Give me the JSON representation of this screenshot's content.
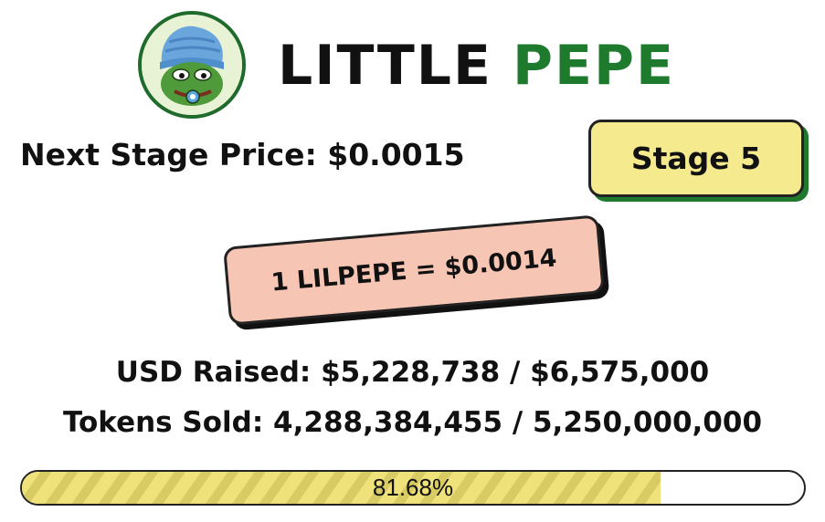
{
  "logo": {
    "icon": "pepe-avatar-icon"
  },
  "title": {
    "part1": "LITTLE",
    "part2": "PEPE"
  },
  "next_stage": {
    "label": "Next Stage Price: $0.0015"
  },
  "stage_badge": {
    "label": "Stage 5"
  },
  "price_card": {
    "label": "1 LILPEPE = $0.0014"
  },
  "stats": {
    "usd_raised": "USD Raised: $5,228,738 / $6,575,000",
    "tokens_sold": "Tokens Sold: 4,288,384,455 / 5,250,000,000"
  },
  "progress": {
    "label": "81.68%",
    "fraction": 0.8168
  },
  "colors": {
    "brand_green": "#1e7a2d",
    "badge_yellow": "#f6ea8f",
    "card_peach": "#f7c5b3",
    "progress_yellow": "#f0e27a"
  }
}
